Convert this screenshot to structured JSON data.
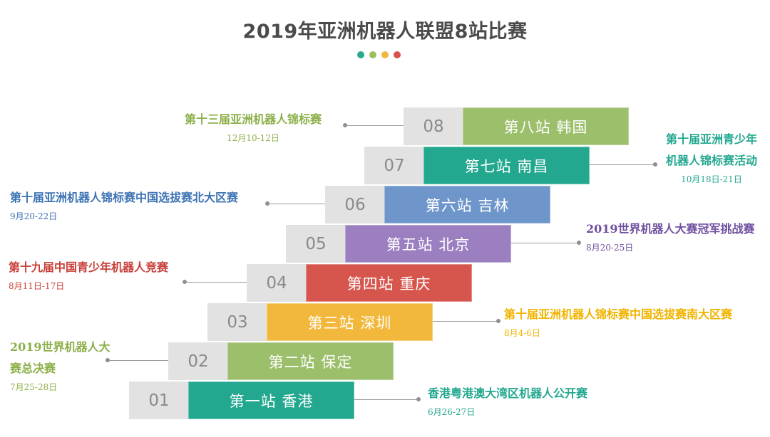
{
  "title": "2019年亚洲机器人联盟8站比赛",
  "dot_colors": [
    "#29a98e",
    "#9cbf5b",
    "#f1b83d",
    "#d7534b"
  ],
  "stations": [
    {
      "num": "01",
      "label": "第一站  香港",
      "color": "#23a88f",
      "event": {
        "name": "香港粤港澳大湾区机器人公开赛",
        "date": "6月26-27日",
        "color": "#23a88f"
      }
    },
    {
      "num": "02",
      "label": "第二站  保定",
      "color": "#9cbf6b",
      "event": {
        "name_lines": [
          "2019世界机器人大",
          "赛总决赛"
        ],
        "date": "7月25-28日",
        "color": "#8cb04a"
      }
    },
    {
      "num": "03",
      "label": "第三站  深圳",
      "color": "#f2b83c",
      "event": {
        "name": "第十届亚洲机器人锦标赛中国选拔赛南大区赛",
        "date": "8月4-6日",
        "color": "#f0b400"
      }
    },
    {
      "num": "04",
      "label": "第四站  重庆",
      "color": "#d6564d",
      "event": {
        "name": "第十九届中国青少年机器人竞赛",
        "date": "8月11日-17日",
        "color": "#c9403a"
      }
    },
    {
      "num": "05",
      "label": "第五站  北京",
      "color": "#9b7fc0",
      "event": {
        "name": "2019世界机器人大赛冠军挑战赛",
        "date": "8月20-25日",
        "color": "#6f4fa0"
      }
    },
    {
      "num": "06",
      "label": "第六站  吉林",
      "color": "#6f96cb",
      "event": {
        "name": "第十届亚洲机器人锦标赛中国选拔赛北大区赛",
        "date": "9月20-22日",
        "color": "#3d73b4"
      }
    },
    {
      "num": "07",
      "label": "第七站  南昌",
      "color": "#23a88f",
      "event": {
        "name_lines": [
          "第十届亚洲青少年",
          "机器人锦标赛活动"
        ],
        "date": "10月18日-21日",
        "color": "#23a88f"
      }
    },
    {
      "num": "08",
      "label": "第八站  韩国",
      "color": "#9cbf6b",
      "event": {
        "name": "第十三届亚洲机器人锦标赛",
        "date": "12月10-12日",
        "color": "#8cb04a"
      }
    }
  ]
}
